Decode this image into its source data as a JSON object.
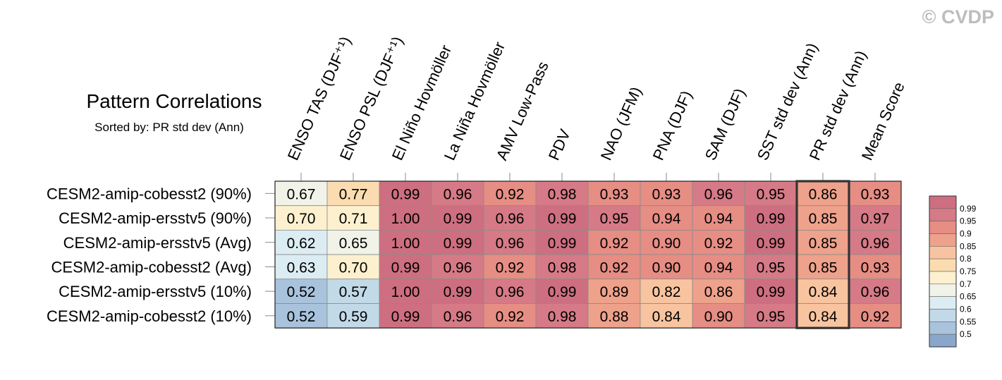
{
  "watermark": "© CVDP",
  "chart_data": {
    "type": "heatmap",
    "title": "Pattern Correlations",
    "subtitle": "Sorted by: PR std dev (Ann)",
    "columns": [
      "ENSO TAS (DJF⁺¹)",
      "ENSO PSL (DJF⁺¹)",
      "El Niño Hovmöller",
      "La Niña Hovmöller",
      "AMV Low-Pass",
      "PDV",
      "NAO (JFM)",
      "PNA (DJF)",
      "SAM (DJF)",
      "SST std dev (Ann)",
      "PR std dev (Ann)",
      "Mean Score"
    ],
    "highlighted_column": "PR std dev (Ann)",
    "rows": [
      "CESM2-amip-cobesst2 (90%)",
      "CESM2-amip-ersstv5 (90%)",
      "CESM2-amip-ersstv5 (Avg)",
      "CESM2-amip-cobesst2 (Avg)",
      "CESM2-amip-ersstv5 (10%)",
      "CESM2-amip-cobesst2 (10%)"
    ],
    "values": [
      [
        "0.67",
        "0.77",
        "0.99",
        "0.96",
        "0.92",
        "0.98",
        "0.93",
        "0.93",
        "0.96",
        "0.95",
        "0.86",
        "0.93"
      ],
      [
        "0.70",
        "0.71",
        "1.00",
        "0.99",
        "0.96",
        "0.99",
        "0.95",
        "0.94",
        "0.94",
        "0.99",
        "0.85",
        "0.97"
      ],
      [
        "0.62",
        "0.65",
        "1.00",
        "0.99",
        "0.96",
        "0.99",
        "0.92",
        "0.90",
        "0.92",
        "0.99",
        "0.85",
        "0.96"
      ],
      [
        "0.63",
        "0.70",
        "0.99",
        "0.96",
        "0.92",
        "0.98",
        "0.92",
        "0.90",
        "0.94",
        "0.95",
        "0.85",
        "0.93"
      ],
      [
        "0.52",
        "0.57",
        "1.00",
        "0.99",
        "0.96",
        "0.99",
        "0.89",
        "0.82",
        "0.86",
        "0.99",
        "0.84",
        "0.96"
      ],
      [
        "0.52",
        "0.59",
        "0.99",
        "0.96",
        "0.92",
        "0.98",
        "0.88",
        "0.84",
        "0.90",
        "0.95",
        "0.84",
        "0.92"
      ]
    ],
    "colorbar": {
      "labels": [
        "0.99",
        "0.95",
        "0.9",
        "0.85",
        "0.8",
        "0.75",
        "0.7",
        "0.65",
        "0.6",
        "0.55",
        "0.5"
      ],
      "boundaries": [
        0.5,
        0.55,
        0.6,
        0.65,
        0.7,
        0.75,
        0.8,
        0.85,
        0.9,
        0.95,
        0.99
      ],
      "colors": [
        "#8aa6cb",
        "#a9c3dd",
        "#c2d9e8",
        "#dcecf3",
        "#f1f3e8",
        "#fcf0ce",
        "#fbdcb0",
        "#f8c49f",
        "#eea18b",
        "#e68d84",
        "#d57a86",
        "#cd6f80"
      ]
    }
  }
}
